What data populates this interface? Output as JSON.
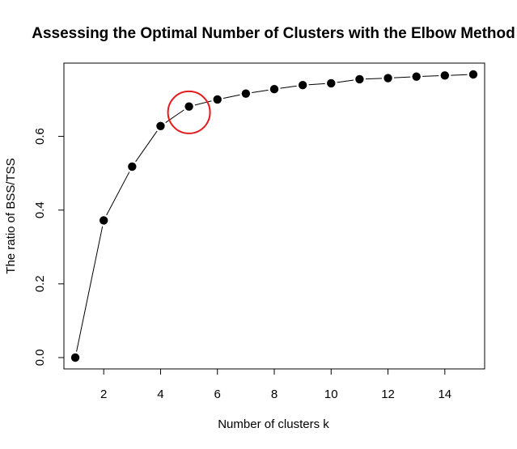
{
  "chart_data": {
    "type": "line",
    "title": "Assessing the Optimal Number of Clusters with the Elbow Method",
    "xlabel": "Number of clusters k",
    "ylabel": "The ratio of BSS/TSS",
    "x": [
      1,
      2,
      3,
      4,
      5,
      6,
      7,
      8,
      9,
      10,
      11,
      12,
      13,
      14,
      15
    ],
    "series": [
      {
        "values": [
          0.0,
          0.372,
          0.518,
          0.628,
          0.681,
          0.7,
          0.716,
          0.728,
          0.739,
          0.744,
          0.755,
          0.758,
          0.762,
          0.765,
          0.768
        ]
      }
    ],
    "xlim": [
      0.6,
      15.4
    ],
    "ylim": [
      -0.0307,
      0.7987
    ],
    "xticks": [
      2,
      4,
      6,
      8,
      10,
      12,
      14
    ],
    "yticks": [
      0.0,
      0.2,
      0.4,
      0.6
    ],
    "ytick_labels": [
      "0.0",
      "0.2",
      "0.4",
      "0.6"
    ],
    "grid": false,
    "marker": "filled-circle",
    "line_color": "#000000",
    "marker_color": "#000000",
    "highlight": {
      "shape": "circle",
      "x": 5,
      "y": 0.665,
      "color": "#e41a1c"
    }
  }
}
